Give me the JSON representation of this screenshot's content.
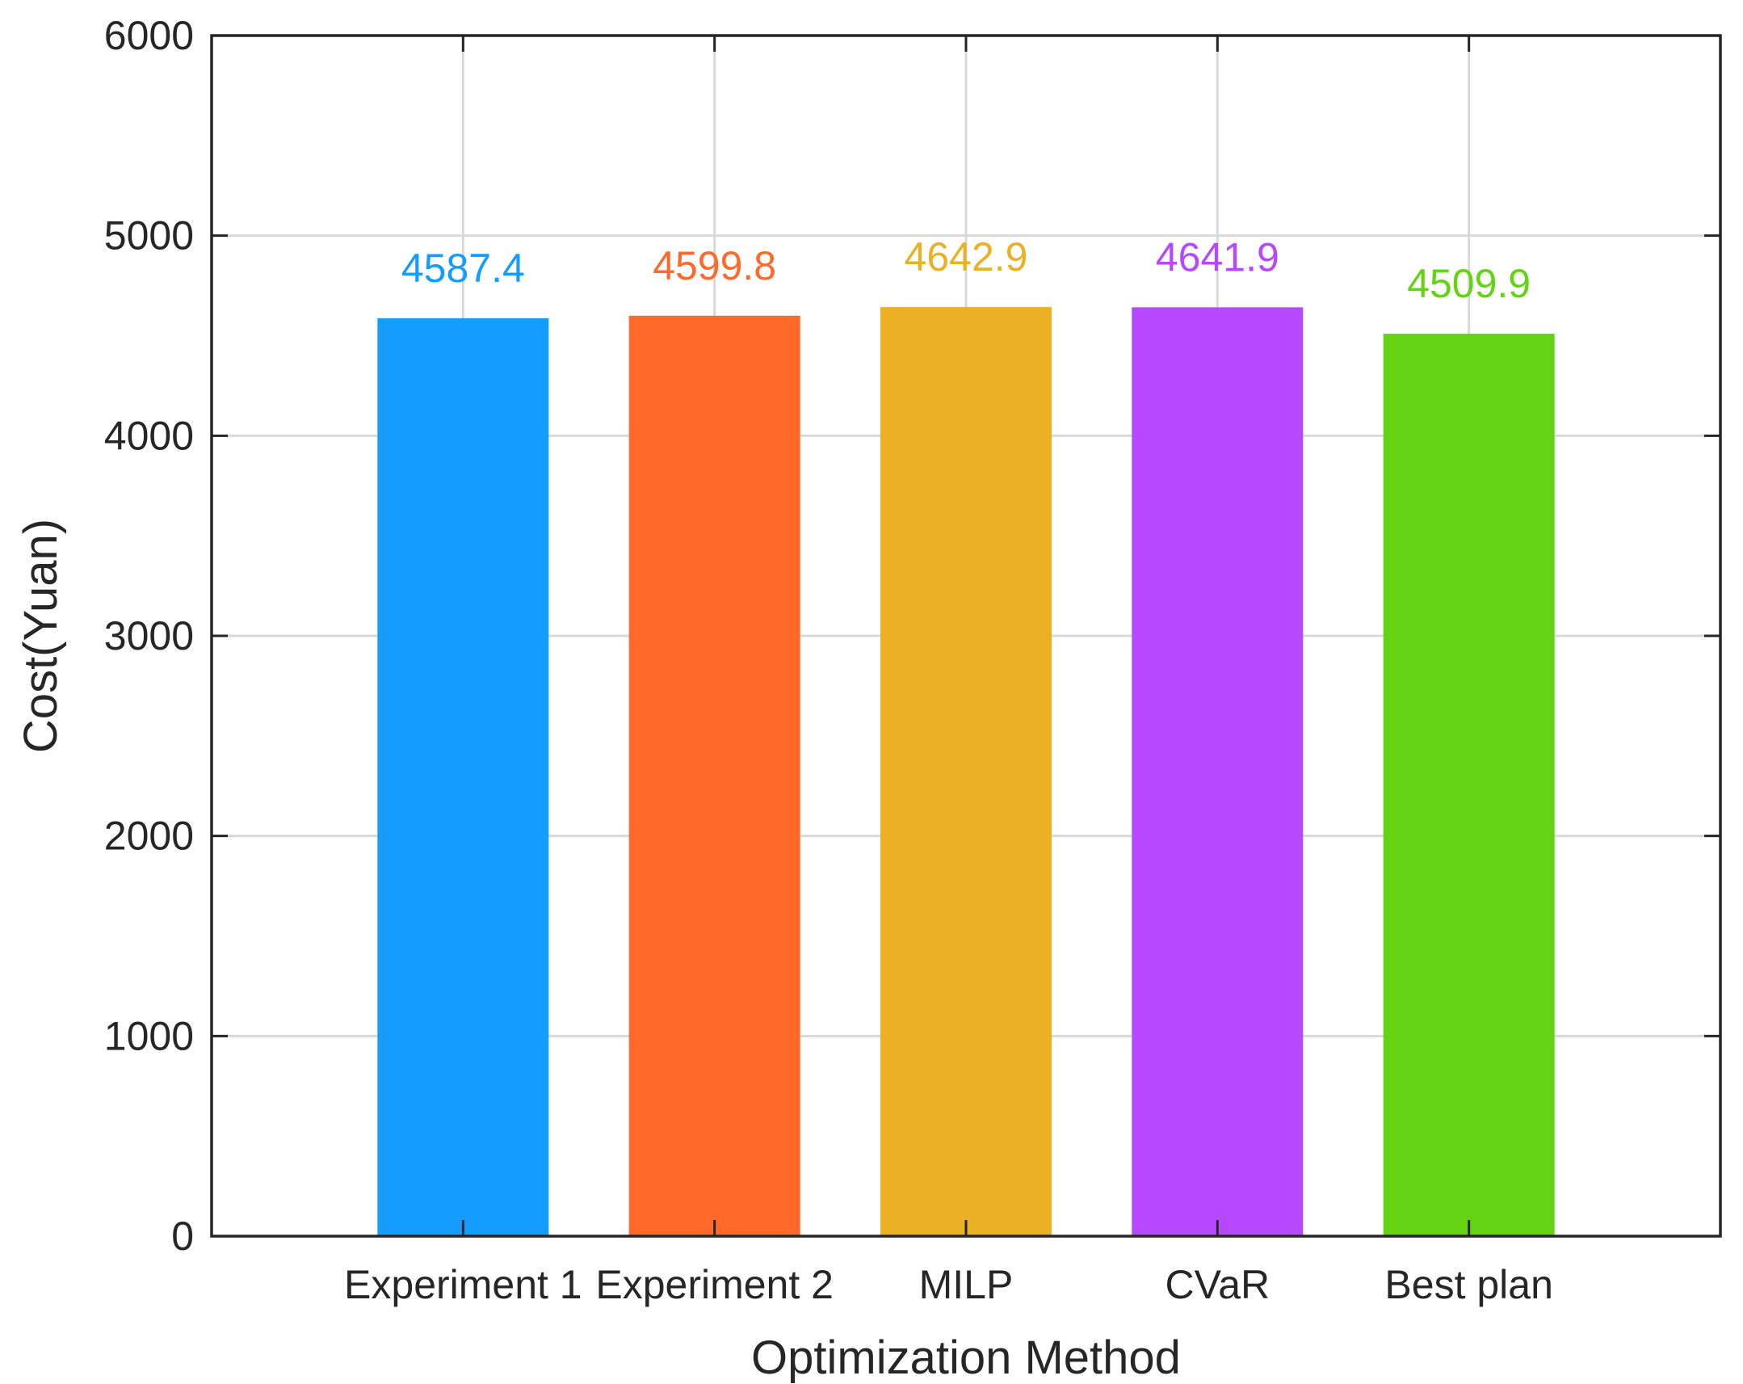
{
  "chart_data": {
    "type": "bar",
    "title": "",
    "xlabel": "Optimization Method",
    "ylabel": "Cost(Yuan)",
    "categories": [
      "Experiment 1",
      "Experiment 2",
      "MILP",
      "CVaR",
      "Best plan"
    ],
    "values": [
      4587.4,
      4599.8,
      4642.9,
      4641.9,
      4509.9
    ],
    "value_labels": [
      "4587.4",
      "4599.8",
      "4642.9",
      "4641.9",
      "4509.9"
    ],
    "colors": [
      "#149dff",
      "#ff6a2b",
      "#ebb023",
      "#b648ff",
      "#64d314"
    ],
    "ylim": [
      0,
      6000
    ],
    "yticks": [
      0,
      1000,
      2000,
      3000,
      4000,
      5000,
      6000
    ],
    "ytick_labels": [
      "0",
      "1000",
      "2000",
      "3000",
      "4000",
      "5000",
      "6000"
    ],
    "grid": true,
    "legend": "none"
  }
}
